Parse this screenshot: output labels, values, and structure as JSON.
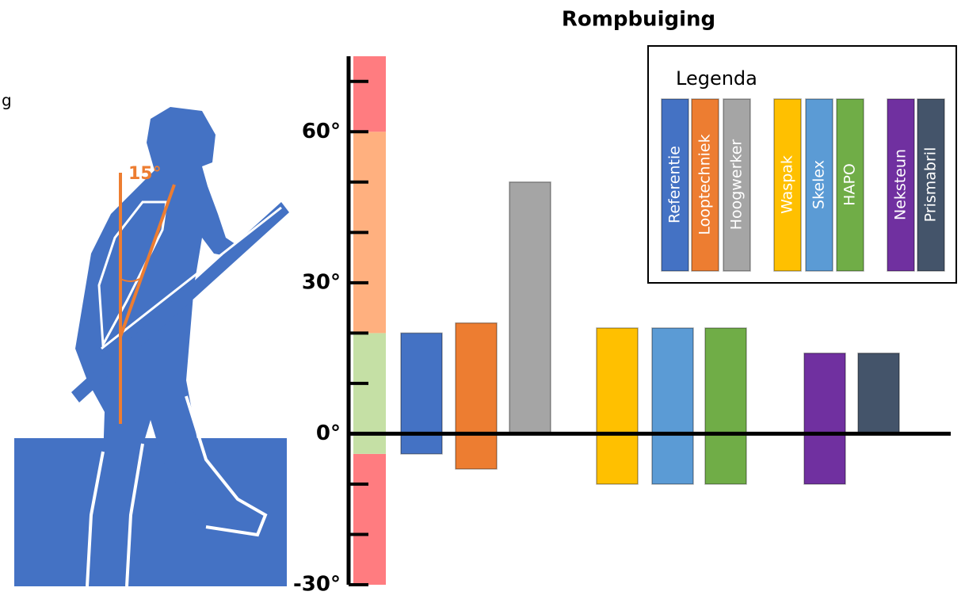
{
  "chart_data": {
    "type": "range-bar",
    "title": "Rompbuiging",
    "legend_title": "Legenda",
    "categories": [
      "Referentie",
      "Looptechniek",
      "Hoogwerker",
      "Waspak",
      "Skelex",
      "HAPO",
      "Neksteun",
      "Prismabril"
    ],
    "low": [
      -4,
      -7,
      0,
      -10,
      -10,
      -10,
      -10,
      0
    ],
    "high": [
      20,
      22,
      50,
      21,
      21,
      21,
      16,
      16
    ],
    "colors": [
      "#4472c4",
      "#ed7d31",
      "#a5a5a5",
      "#ffc000",
      "#5b9bd5",
      "#70ad47",
      "#7030a0",
      "#44546a"
    ],
    "ylim": [
      -30,
      75
    ],
    "yticks": [
      {
        "value": -30,
        "label": "-30°"
      },
      {
        "value": 0,
        "label": "0°"
      },
      {
        "value": 30,
        "label": "30°"
      },
      {
        "value": 60,
        "label": "60°"
      }
    ],
    "minor_yticks": [
      -20,
      -10,
      10,
      20,
      40,
      50,
      70
    ],
    "zones": [
      {
        "from": -30,
        "to": -4,
        "color": "#ff7c80"
      },
      {
        "from": -4,
        "to": 20,
        "color": "#c5e0a5"
      },
      {
        "from": 20,
        "to": 60,
        "color": "#ffb07f"
      },
      {
        "from": 60,
        "to": 75,
        "color": "#ff7c80"
      }
    ],
    "annotation": "15°",
    "clipped_text": "g"
  }
}
